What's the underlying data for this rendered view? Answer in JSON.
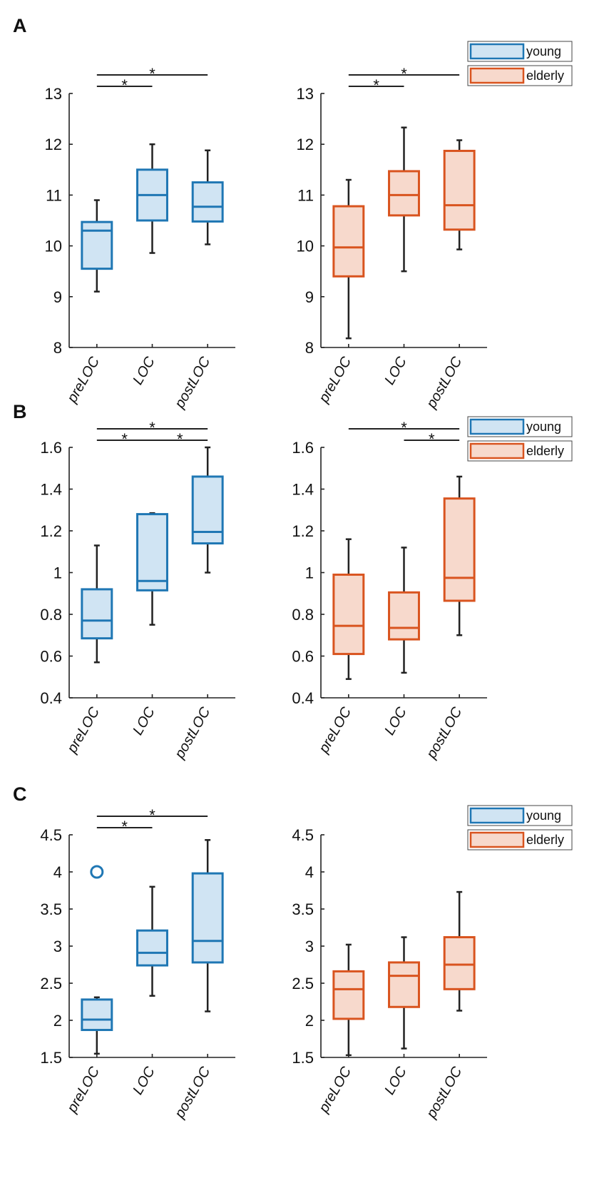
{
  "colors": {
    "young_stroke": "#1f77b4",
    "young_fill": "#d0e4f3",
    "elderly_stroke": "#d9541f",
    "elderly_fill": "#f7d9cc",
    "axis": "#222222"
  },
  "legend": {
    "young": "young",
    "elderly": "elderly"
  },
  "chart_data": [
    {
      "panel": "A",
      "group": "young",
      "type": "box",
      "categories": [
        "preLOC",
        "LOC",
        "postLOC"
      ],
      "ylim": [
        8,
        13
      ],
      "yticks": [
        8,
        9,
        10,
        11,
        12,
        13
      ],
      "ytick_labels": [
        "8",
        "9",
        "10",
        "11",
        "12",
        "13"
      ],
      "boxes": [
        {
          "min": 9.1,
          "q1": 9.55,
          "median": 10.3,
          "q3": 10.47,
          "max": 10.9,
          "outliers": []
        },
        {
          "min": 9.86,
          "q1": 10.5,
          "median": 11.0,
          "q3": 11.5,
          "max": 12.0,
          "outliers": []
        },
        {
          "min": 10.03,
          "q1": 10.48,
          "median": 10.77,
          "q3": 11.25,
          "max": 11.88,
          "outliers": []
        }
      ],
      "significance": [
        {
          "from": 0,
          "to": 1,
          "level": 1,
          "label": "*"
        },
        {
          "from": 0,
          "to": 2,
          "level": 2,
          "label": "*"
        }
      ],
      "legend": "top-right"
    },
    {
      "panel": "A",
      "group": "elderly",
      "type": "box",
      "categories": [
        "preLOC",
        "LOC",
        "postLOC"
      ],
      "ylim": [
        8,
        13
      ],
      "yticks": [
        8,
        9,
        10,
        11,
        12,
        13
      ],
      "ytick_labels": [
        "8",
        "9",
        "10",
        "11",
        "12",
        "13"
      ],
      "boxes": [
        {
          "min": 8.18,
          "q1": 9.4,
          "median": 9.97,
          "q3": 10.78,
          "max": 11.3,
          "outliers": []
        },
        {
          "min": 9.5,
          "q1": 10.6,
          "median": 11.0,
          "q3": 11.47,
          "max": 12.33,
          "outliers": []
        },
        {
          "min": 9.93,
          "q1": 10.32,
          "median": 10.8,
          "q3": 11.87,
          "max": 12.08,
          "outliers": []
        }
      ],
      "significance": [
        {
          "from": 0,
          "to": 1,
          "level": 1,
          "label": "*"
        },
        {
          "from": 0,
          "to": 2,
          "level": 2,
          "label": "*"
        }
      ],
      "legend": "none"
    },
    {
      "panel": "B",
      "group": "young",
      "type": "box",
      "categories": [
        "preLOC",
        "LOC",
        "postLOC"
      ],
      "ylim": [
        0.4,
        1.6
      ],
      "yticks": [
        0.4,
        0.6,
        0.8,
        1.0,
        1.2,
        1.4,
        1.6
      ],
      "ytick_labels": [
        "0.4",
        "0.6",
        "0.8",
        "1",
        "1.2",
        "1.4",
        "1.6"
      ],
      "boxes": [
        {
          "min": 0.57,
          "q1": 0.685,
          "median": 0.77,
          "q3": 0.92,
          "max": 1.13,
          "outliers": []
        },
        {
          "min": 0.75,
          "q1": 0.915,
          "median": 0.96,
          "q3": 1.28,
          "max": 1.285,
          "outliers": []
        },
        {
          "min": 1.0,
          "q1": 1.14,
          "median": 1.195,
          "q3": 1.46,
          "max": 1.6,
          "outliers": []
        }
      ],
      "significance": [
        {
          "from": 0,
          "to": 1,
          "level": 1,
          "label": "*"
        },
        {
          "from": 1,
          "to": 2,
          "level": 1,
          "label": "*"
        },
        {
          "from": 0,
          "to": 2,
          "level": 2,
          "label": "*"
        }
      ],
      "legend": "none"
    },
    {
      "panel": "B",
      "group": "elderly",
      "type": "box",
      "categories": [
        "preLOC",
        "LOC",
        "postLOC"
      ],
      "ylim": [
        0.4,
        1.6
      ],
      "yticks": [
        0.4,
        0.6,
        0.8,
        1.0,
        1.2,
        1.4,
        1.6
      ],
      "ytick_labels": [
        "0.4",
        "0.6",
        "0.8",
        "1",
        "1.2",
        "1.4",
        "1.6"
      ],
      "boxes": [
        {
          "min": 0.49,
          "q1": 0.61,
          "median": 0.745,
          "q3": 0.99,
          "max": 1.16,
          "outliers": []
        },
        {
          "min": 0.52,
          "q1": 0.68,
          "median": 0.735,
          "q3": 0.905,
          "max": 1.12,
          "outliers": []
        },
        {
          "min": 0.7,
          "q1": 0.865,
          "median": 0.975,
          "q3": 1.355,
          "max": 1.46,
          "outliers": []
        }
      ],
      "significance": [
        {
          "from": 1,
          "to": 2,
          "level": 1,
          "label": "*"
        },
        {
          "from": 0,
          "to": 2,
          "level": 2,
          "label": "*"
        }
      ],
      "legend": "top-right"
    },
    {
      "panel": "C",
      "group": "young",
      "type": "box",
      "categories": [
        "preLOC",
        "LOC",
        "postLOC"
      ],
      "ylim": [
        1.5,
        4.5
      ],
      "yticks": [
        1.5,
        2,
        2.5,
        3,
        3.5,
        4,
        4.5
      ],
      "ytick_labels": [
        "1.5",
        "2",
        "2.5",
        "3",
        "3.5",
        "4",
        "4.5"
      ],
      "boxes": [
        {
          "min": 1.55,
          "q1": 1.87,
          "median": 2.01,
          "q3": 2.28,
          "max": 2.31,
          "outliers": [
            4.0
          ]
        },
        {
          "min": 2.33,
          "q1": 2.74,
          "median": 2.91,
          "q3": 3.21,
          "max": 3.8,
          "outliers": []
        },
        {
          "min": 2.12,
          "q1": 2.78,
          "median": 3.07,
          "q3": 3.98,
          "max": 4.43,
          "outliers": []
        }
      ],
      "significance": [
        {
          "from": 0,
          "to": 1,
          "level": 1,
          "label": "*"
        },
        {
          "from": 0,
          "to": 2,
          "level": 2,
          "label": "*"
        }
      ],
      "legend": "none"
    },
    {
      "panel": "C",
      "group": "elderly",
      "type": "box",
      "categories": [
        "preLOC",
        "LOC",
        "postLOC"
      ],
      "ylim": [
        1.5,
        4.5
      ],
      "yticks": [
        1.5,
        2,
        2.5,
        3,
        3.5,
        4,
        4.5
      ],
      "ytick_labels": [
        "1.5",
        "2",
        "2.5",
        "3",
        "3.5",
        "4",
        "4.5"
      ],
      "boxes": [
        {
          "min": 1.53,
          "q1": 2.02,
          "median": 2.42,
          "q3": 2.66,
          "max": 3.02,
          "outliers": []
        },
        {
          "min": 1.62,
          "q1": 2.18,
          "median": 2.6,
          "q3": 2.78,
          "max": 3.12,
          "outliers": []
        },
        {
          "min": 2.13,
          "q1": 2.42,
          "median": 2.75,
          "q3": 3.12,
          "max": 3.73,
          "outliers": []
        }
      ],
      "significance": [],
      "legend": "top-right"
    }
  ]
}
